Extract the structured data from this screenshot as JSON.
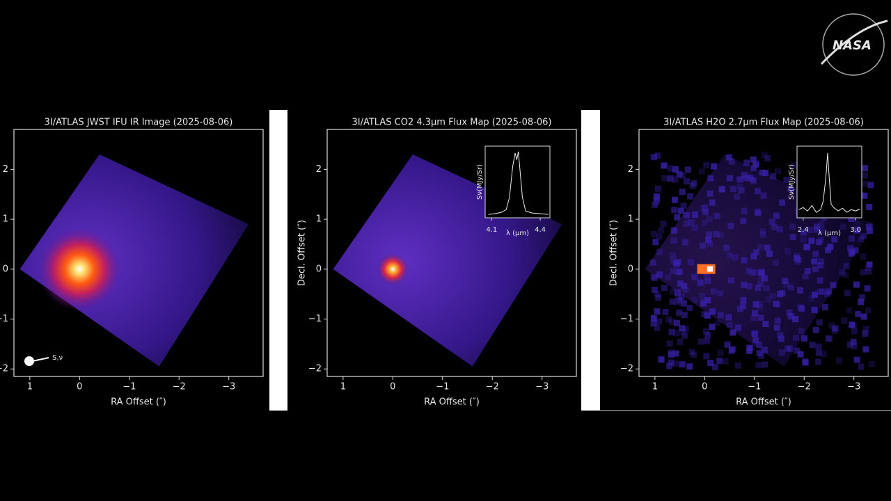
{
  "logo": "NASA",
  "chart_data": [
    {
      "type": "image",
      "title": "3I/ATLAS JWST IFU IR Image (2025-08-06)",
      "xlabel": "RA Offset (″)",
      "xlim": [
        1.32,
        -3.69
      ],
      "ylim": [
        -2.15,
        2.8
      ],
      "xticks": [
        1,
        0,
        {
          "value": -1,
          "label": "−1"
        },
        {
          "value": -2,
          "label": "−2"
        },
        {
          "value": -3,
          "label": "−3"
        }
      ],
      "yticks": [
        {
          "value": -2,
          "label": "−2"
        },
        {
          "value": -1,
          "label": "−1"
        },
        0,
        1,
        2
      ],
      "annotation": "S,ν"
    },
    {
      "type": "image",
      "title": "3I/ATLAS CO2 4.3μm Flux Map (2025-08-06)",
      "xlabel": "RA Offset (″)",
      "ylabel": "Decl. Offset (″)",
      "xlim": [
        1.32,
        -3.69
      ],
      "ylim": [
        -2.15,
        2.8
      ],
      "xticks": [
        1,
        0,
        {
          "value": -1,
          "label": "−1"
        },
        {
          "value": -2,
          "label": "−2"
        },
        {
          "value": -3,
          "label": "−3"
        }
      ],
      "yticks": [
        {
          "value": -2,
          "label": "−2"
        },
        {
          "value": -1,
          "label": "−1"
        },
        0,
        1,
        2
      ],
      "inset": {
        "xlabel": "λ (μm)",
        "ylabel": "Sν(MJy/Sr)",
        "xlim": [
          4.06,
          4.46
        ],
        "ylim": [
          0,
          1.05
        ],
        "xticks": [
          4.1,
          4.4
        ],
        "x": [
          4.08,
          4.12,
          4.16,
          4.19,
          4.21,
          4.23,
          4.245,
          4.255,
          4.265,
          4.275,
          4.29,
          4.31,
          4.35,
          4.4,
          4.45
        ],
        "values": [
          0.05,
          0.06,
          0.08,
          0.12,
          0.3,
          0.75,
          0.95,
          0.85,
          0.97,
          0.7,
          0.3,
          0.1,
          0.07,
          0.06,
          0.05
        ]
      }
    },
    {
      "type": "image",
      "title": "3I/ATLAS H2O 2.7μm Flux Map (2025-08-06)",
      "xlabel": "RA Offset (″)",
      "ylabel": "Decl. Offset (″)",
      "xlim": [
        1.32,
        -3.69
      ],
      "ylim": [
        -2.15,
        2.8
      ],
      "xticks": [
        1,
        0,
        {
          "value": -1,
          "label": "−1"
        },
        {
          "value": -2,
          "label": "−2"
        },
        {
          "value": -3,
          "label": "−3"
        }
      ],
      "yticks": [
        {
          "value": -2,
          "label": "−2"
        },
        {
          "value": -1,
          "label": "−1"
        },
        0,
        1,
        2
      ],
      "inset": {
        "xlabel": "λ (μm)",
        "ylabel": "Sν(MJy/Sr)",
        "xlim": [
          2.33,
          3.07
        ],
        "ylim": [
          0,
          1.05
        ],
        "xticks": [
          2.4,
          {
            "value": 3,
            "label": "3.0"
          }
        ],
        "x": [
          2.35,
          2.4,
          2.45,
          2.5,
          2.55,
          2.6,
          2.63,
          2.66,
          2.68,
          2.7,
          2.72,
          2.75,
          2.8,
          2.85,
          2.9,
          2.95,
          3.0,
          3.05
        ],
        "values": [
          0.12,
          0.15,
          0.1,
          0.18,
          0.08,
          0.12,
          0.25,
          0.6,
          0.95,
          0.55,
          0.2,
          0.15,
          0.1,
          0.14,
          0.08,
          0.12,
          0.1,
          0.13
        ]
      }
    }
  ]
}
